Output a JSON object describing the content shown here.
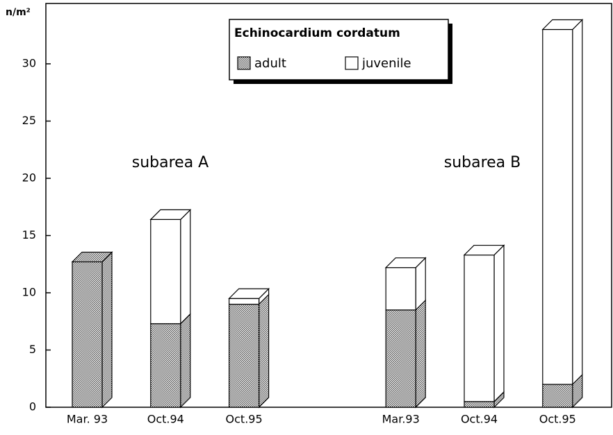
{
  "chart_data": {
    "type": "bar",
    "ylabel": "n/m²",
    "annotations": [
      "subarea A",
      "subarea B"
    ],
    "legend_title": "Echinocardium cordatum",
    "categories": [
      "Mar. 93",
      "Oct.94",
      "Oct.95",
      null,
      "Mar.93",
      "Oct.94",
      "Oct.95"
    ],
    "series": [
      {
        "name": "adult",
        "color": "#555555",
        "pattern": "dotted",
        "values": [
          12.7,
          7.3,
          9.0,
          null,
          8.5,
          0.5,
          2.0
        ]
      },
      {
        "name": "juvenile",
        "color": "#ffffff",
        "values": [
          0,
          9.1,
          0.5,
          null,
          3.7,
          12.8,
          31.0
        ]
      }
    ],
    "stacked": true,
    "ylim": [
      0,
      35
    ],
    "yticks": [
      0,
      5,
      10,
      15,
      20,
      25,
      30
    ]
  }
}
